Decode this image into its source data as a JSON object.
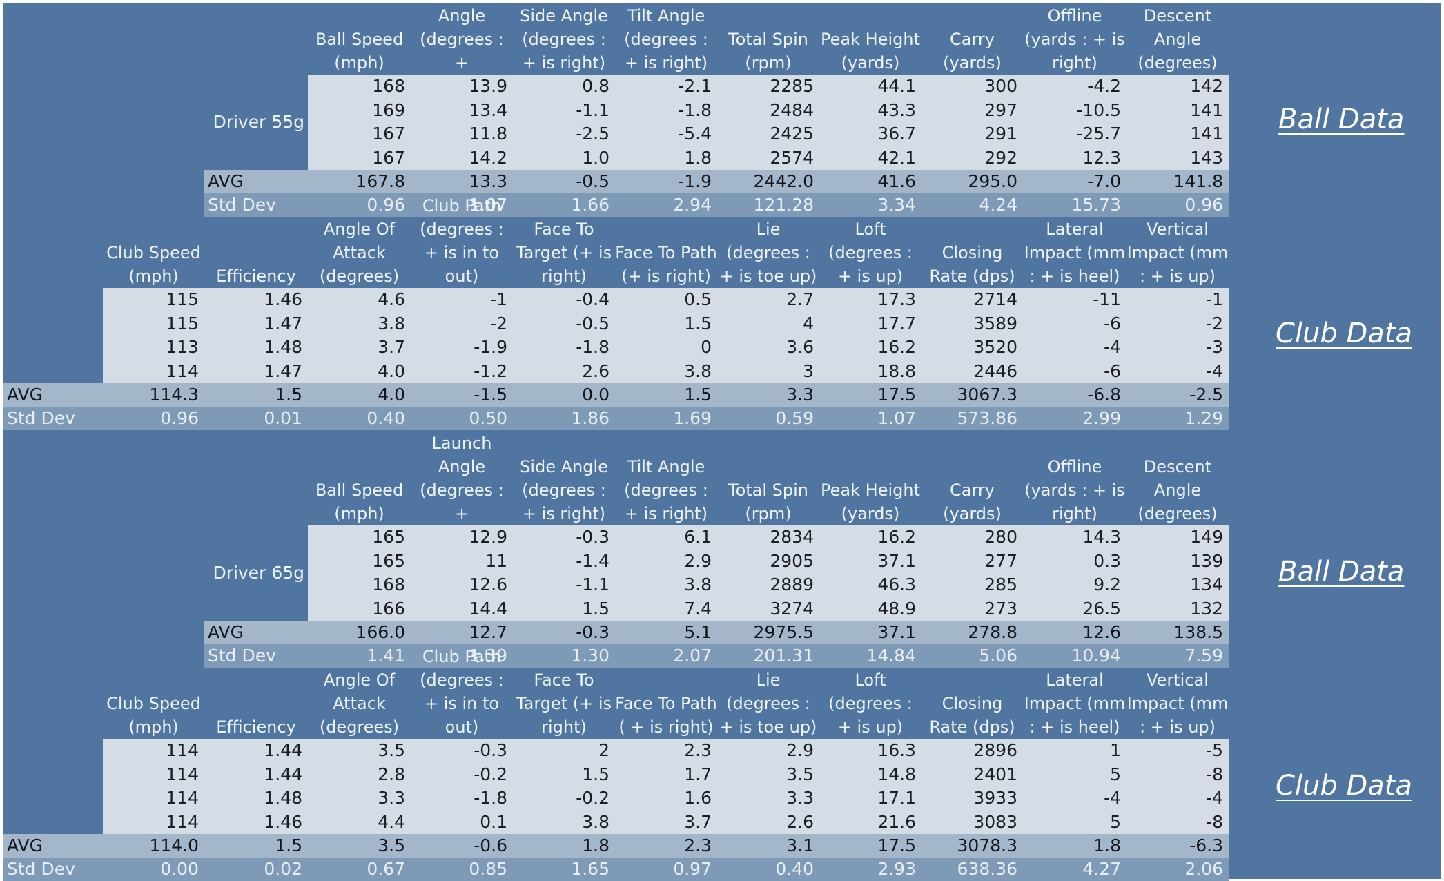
{
  "sections": [
    {
      "club_label": "Driver 55g",
      "ball": {
        "title": "Ball Data",
        "headers": [
          "Ball Speed (mph)",
          "Launch Angle (degrees : +",
          "Side Angle (degrees : + is right)",
          "Tilt Angle (degrees : + is right)",
          "Total Spin (rpm)",
          "Peak Height (yards)",
          "Carry (yards)",
          "Offline (yards : + is right)",
          "Descent Angle (degrees)"
        ],
        "rows": [
          [
            "168",
            "13.9",
            "0.8",
            "-2.1",
            "2285",
            "44.1",
            "300",
            "-4.2",
            "142"
          ],
          [
            "169",
            "13.4",
            "-1.1",
            "-1.8",
            "2484",
            "43.3",
            "297",
            "-10.5",
            "141"
          ],
          [
            "167",
            "11.8",
            "-2.5",
            "-5.4",
            "2425",
            "36.7",
            "291",
            "-25.7",
            "141"
          ],
          [
            "167",
            "14.2",
            "1.0",
            "1.8",
            "2574",
            "42.1",
            "292",
            "12.3",
            "143"
          ]
        ],
        "avg_label": "AVG",
        "avg": [
          "167.8",
          "13.3",
          "-0.5",
          "-1.9",
          "2442.0",
          "41.6",
          "295.0",
          "-7.0",
          "141.8"
        ],
        "std_label": "Std Dev",
        "std": [
          "0.96",
          "1.07",
          "1.66",
          "2.94",
          "121.28",
          "3.34",
          "4.24",
          "15.73",
          "0.96"
        ]
      },
      "club": {
        "title": "Club Data",
        "headers": [
          "Club Speed (mph)",
          "Efficiency",
          "Angle Of Attack (degrees)",
          "Club Path (degrees : + is in to out)",
          "Face To Target (+ is right)",
          "Face To Path (+ is right)",
          "Lie (degrees : + is toe up)",
          "Loft (degrees : + is up)",
          "Closing Rate (dps)",
          "Lateral Impact (mm : + is heel)",
          "Vertical Impact (mm : + is up)"
        ],
        "rows": [
          [
            "115",
            "1.46",
            "4.6",
            "-1",
            "-0.4",
            "0.5",
            "2.7",
            "17.3",
            "2714",
            "-11",
            "-1"
          ],
          [
            "115",
            "1.47",
            "3.8",
            "-2",
            "-0.5",
            "1.5",
            "4",
            "17.7",
            "3589",
            "-6",
            "-2"
          ],
          [
            "113",
            "1.48",
            "3.7",
            "-1.9",
            "-1.8",
            "0",
            "3.6",
            "16.2",
            "3520",
            "-4",
            "-3"
          ],
          [
            "114",
            "1.47",
            "4.0",
            "-1.2",
            "2.6",
            "3.8",
            "3",
            "18.8",
            "2446",
            "-6",
            "-4"
          ]
        ],
        "avg_label": "AVG",
        "avg": [
          "114.3",
          "1.5",
          "4.0",
          "-1.5",
          "0.0",
          "1.5",
          "3.3",
          "17.5",
          "3067.3",
          "-6.8",
          "-2.5"
        ],
        "std_label": "Std Dev",
        "std": [
          "0.96",
          "0.01",
          "0.40",
          "0.50",
          "1.86",
          "1.69",
          "0.59",
          "1.07",
          "573.86",
          "2.99",
          "1.29"
        ]
      }
    },
    {
      "club_label": "Driver 65g",
      "ball": {
        "title": "Ball Data",
        "headers": [
          "Ball Speed (mph)",
          "Launch Angle (degrees : +",
          "Side Angle (degrees : + is right)",
          "Tilt Angle (degrees : + is right)",
          "Total Spin (rpm)",
          "Peak Height (yards)",
          "Carry (yards)",
          "Offline (yards : + is right)",
          "Descent Angle (degrees)"
        ],
        "rows": [
          [
            "165",
            "12.9",
            "-0.3",
            "6.1",
            "2834",
            "16.2",
            "280",
            "14.3",
            "149"
          ],
          [
            "165",
            "11",
            "-1.4",
            "2.9",
            "2905",
            "37.1",
            "277",
            "0.3",
            "139"
          ],
          [
            "168",
            "12.6",
            "-1.1",
            "3.8",
            "2889",
            "46.3",
            "285",
            "9.2",
            "134"
          ],
          [
            "166",
            "14.4",
            "1.5",
            "7.4",
            "3274",
            "48.9",
            "273",
            "26.5",
            "132"
          ]
        ],
        "avg_label": "AVG",
        "avg": [
          "166.0",
          "12.7",
          "-0.3",
          "5.1",
          "2975.5",
          "37.1",
          "278.8",
          "12.6",
          "138.5"
        ],
        "std_label": "Std Dev",
        "std": [
          "1.41",
          "1.39",
          "1.30",
          "2.07",
          "201.31",
          "14.84",
          "5.06",
          "10.94",
          "7.59"
        ]
      },
      "club": {
        "title": "Club Data",
        "headers": [
          "Club Speed (mph)",
          "Efficiency",
          "Angle Of Attack (degrees)",
          "Club Path (degrees : + is in to out)",
          "Face To Target (+ is right)",
          "Face To Path ( + is right)",
          "Lie (degrees : + is toe up)",
          "Loft (degrees : + is up)",
          "Closing Rate (dps)",
          "Lateral Impact (mm : + is heel)",
          "Vertical Impact (mm : + is up)"
        ],
        "rows": [
          [
            "114",
            "1.44",
            "3.5",
            "-0.3",
            "2",
            "2.3",
            "2.9",
            "16.3",
            "2896",
            "1",
            "-5"
          ],
          [
            "114",
            "1.44",
            "2.8",
            "-0.2",
            "1.5",
            "1.7",
            "3.5",
            "14.8",
            "2401",
            "5",
            "-8"
          ],
          [
            "114",
            "1.48",
            "3.3",
            "-1.8",
            "-0.2",
            "1.6",
            "3.3",
            "17.1",
            "3933",
            "-4",
            "-4"
          ],
          [
            "114",
            "1.46",
            "4.4",
            "0.1",
            "3.8",
            "3.7",
            "2.6",
            "21.6",
            "3083",
            "5",
            "-8"
          ]
        ],
        "avg_label": "AVG",
        "avg": [
          "114.0",
          "1.5",
          "3.5",
          "-0.6",
          "1.8",
          "2.3",
          "3.1",
          "17.5",
          "3078.3",
          "1.8",
          "-6.3"
        ],
        "std_label": "Std Dev",
        "std": [
          "0.00",
          "0.02",
          "0.67",
          "0.85",
          "1.65",
          "0.97",
          "0.40",
          "2.93",
          "638.36",
          "4.27",
          "2.06"
        ]
      }
    }
  ]
}
